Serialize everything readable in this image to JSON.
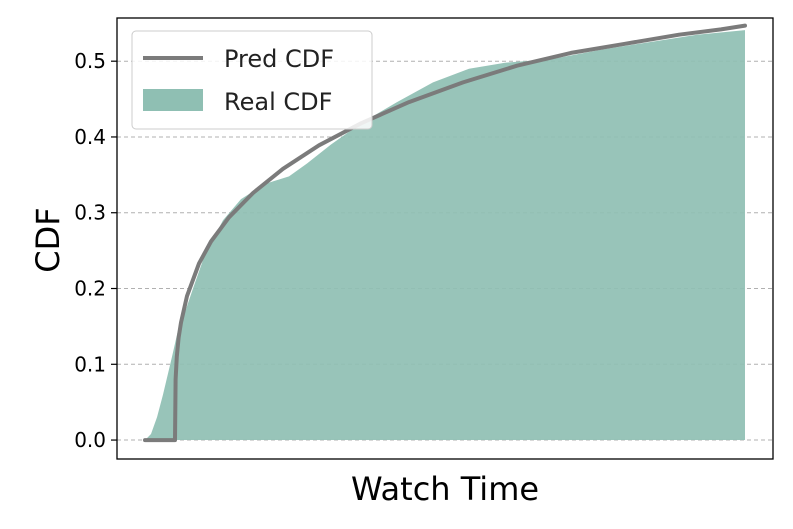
{
  "chart_data": {
    "type": "area",
    "xlabel": "Watch Time",
    "ylabel": "CDF",
    "ylim": [
      -0.025,
      0.557
    ],
    "yticks": [
      "0.0",
      "0.1",
      "0.2",
      "0.3",
      "0.4",
      "0.5"
    ],
    "ytick_values": [
      0.0,
      0.1,
      0.2,
      0.3,
      0.4,
      0.5
    ],
    "xticks_shown": false,
    "grid": "horizontal-dashed",
    "legend_position": "top-left",
    "series": [
      {
        "name": "Pred CDF",
        "kind": "line",
        "color": "#7b7b7b",
        "x": [
          0.0,
          0.05,
          0.051,
          0.053,
          0.056,
          0.06,
          0.07,
          0.09,
          0.11,
          0.14,
          0.18,
          0.23,
          0.29,
          0.36,
          0.44,
          0.53,
          0.62,
          0.71,
          0.8,
          0.89,
          0.96,
          1.0
        ],
        "y": [
          0.0,
          0.0,
          0.08,
          0.11,
          0.135,
          0.155,
          0.19,
          0.233,
          0.262,
          0.294,
          0.326,
          0.358,
          0.389,
          0.418,
          0.446,
          0.472,
          0.494,
          0.511,
          0.523,
          0.535,
          0.542,
          0.547
        ]
      },
      {
        "name": "Real CDF",
        "kind": "area",
        "color": "#8fbfb3",
        "x": [
          0.0,
          0.01,
          0.02,
          0.03,
          0.045,
          0.055,
          0.065,
          0.08,
          0.1,
          0.13,
          0.16,
          0.2,
          0.24,
          0.27,
          0.31,
          0.36,
          0.42,
          0.48,
          0.54,
          0.6,
          0.68,
          0.76,
          0.84,
          0.92,
          1.0
        ],
        "y": [
          0.0,
          0.008,
          0.03,
          0.06,
          0.11,
          0.145,
          0.165,
          0.2,
          0.245,
          0.29,
          0.318,
          0.338,
          0.348,
          0.365,
          0.39,
          0.418,
          0.446,
          0.472,
          0.49,
          0.498,
          0.503,
          0.515,
          0.525,
          0.535,
          0.541
        ]
      }
    ]
  }
}
